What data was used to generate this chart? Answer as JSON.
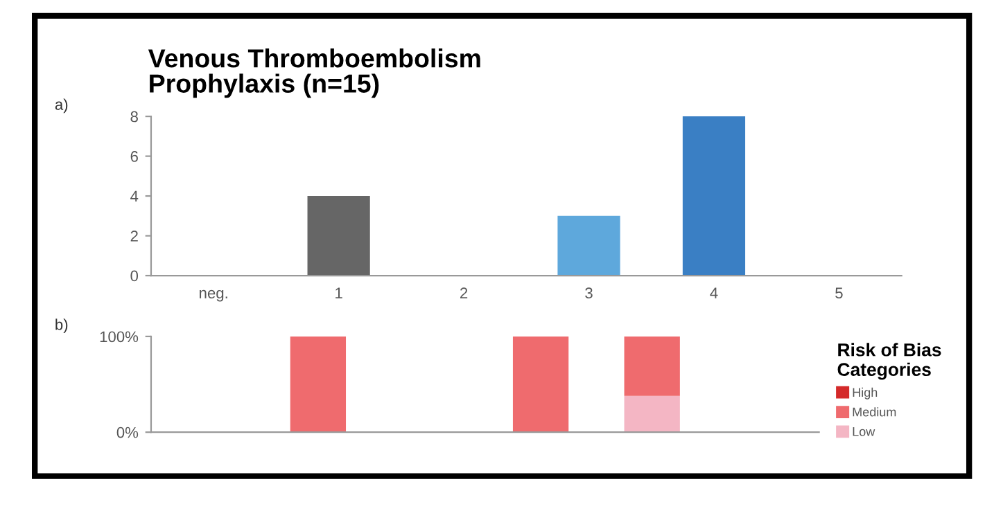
{
  "chart_data": [
    {
      "type": "bar",
      "title": "Venous Thromboembolism Prophylaxis (n=15)",
      "annotations": [
        "a)"
      ],
      "categories": [
        "neg.",
        "1",
        "2",
        "3",
        "4",
        "5"
      ],
      "values": [
        0,
        4,
        0,
        3,
        8,
        0
      ],
      "colors": [
        "#666666",
        "#666666",
        "#666666",
        "#5ea8dc",
        "#3a7fc4",
        "#3a7fc4"
      ],
      "ylim": [
        0,
        8
      ],
      "yticks": [
        0,
        2,
        4,
        6,
        8
      ],
      "grid": false,
      "legend": false
    },
    {
      "type": "bar",
      "stacked": true,
      "annotations": [
        "b)"
      ],
      "legend_title": "Risk of Bias Categories",
      "legend": "right",
      "categories": [
        null,
        null,
        null,
        null,
        null,
        null
      ],
      "series": [
        {
          "name": "Low",
          "color": "#f4b6c4",
          "values": [
            0,
            0,
            0,
            0,
            38,
            0
          ]
        },
        {
          "name": "Medium",
          "color": "#ef6b6e",
          "values": [
            0,
            100,
            0,
            100,
            62,
            0
          ]
        },
        {
          "name": "High",
          "color": "#d42a2a",
          "values": [
            0,
            0,
            0,
            0,
            0,
            0
          ]
        }
      ],
      "ylim": [
        0,
        100
      ],
      "yticks": [
        {
          "value": 0,
          "label": "0%"
        },
        {
          "value": 100,
          "label": "100%"
        }
      ],
      "grid": false
    }
  ]
}
